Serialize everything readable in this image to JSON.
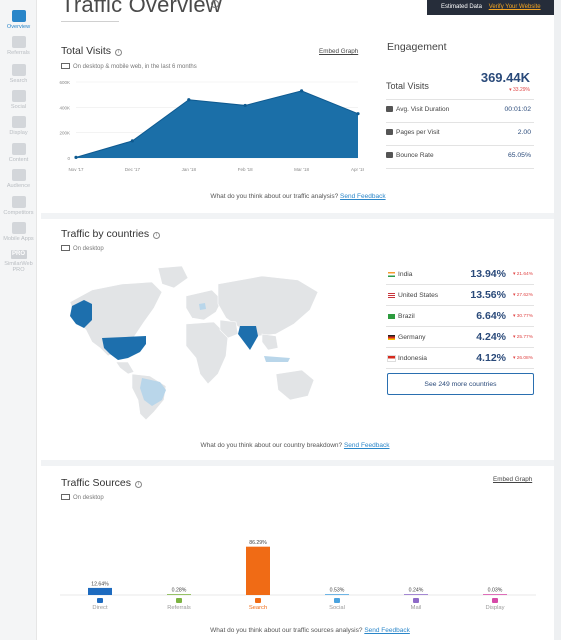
{
  "sidebar": {
    "items": [
      {
        "label": "Overview",
        "active": true
      },
      {
        "label": "Referrals"
      },
      {
        "label": "Search"
      },
      {
        "label": "Social"
      },
      {
        "label": "Display"
      },
      {
        "label": "Content"
      },
      {
        "label": "Audience"
      },
      {
        "label": "Competitors"
      },
      {
        "label": "Mobile Apps"
      }
    ],
    "pro_badge": "PRO",
    "pro_label_1": "SimilarWeb",
    "pro_label_2": "PRO"
  },
  "header": {
    "title": "Traffic Overview",
    "estimated_label": "Estimated Data",
    "verify_link": "Verify Your Website"
  },
  "total_visits": {
    "title": "Total Visits",
    "note": "On desktop & mobile web, in the last 6 months",
    "embed_link": "Embed Graph",
    "chart_data": {
      "type": "area",
      "x": [
        "Nov '17",
        "Dec '17",
        "Jan '18",
        "Feb '18",
        "Mar '18",
        "Apr '18"
      ],
      "values": [
        5,
        135,
        460,
        415,
        530,
        350
      ],
      "yticks": [
        "600K",
        "400K",
        "200K",
        "0"
      ],
      "ylim": [
        0,
        600
      ],
      "grid": true,
      "color": "#1b6fa8"
    },
    "feedback_text": "What do you think about our traffic analysis?",
    "feedback_link": "Send Feedback"
  },
  "engagement": {
    "title": "Engagement",
    "total_visits_label": "Total Visits",
    "total_visits_value": "369.44K",
    "total_visits_change": "33.29%",
    "rows": [
      {
        "label": "Avg. Visit Duration",
        "value": "00:01:02"
      },
      {
        "label": "Pages per Visit",
        "value": "2.00"
      },
      {
        "label": "Bounce Rate",
        "value": "65.05%"
      }
    ]
  },
  "countries": {
    "title": "Traffic by countries",
    "note": "On desktop",
    "rows": [
      {
        "name": "India",
        "pct": "13.94%",
        "change": "21.64%"
      },
      {
        "name": "United States",
        "pct": "13.56%",
        "change": "27.62%"
      },
      {
        "name": "Brazil",
        "pct": "6.64%",
        "change": "30.77%"
      },
      {
        "name": "Germany",
        "pct": "4.24%",
        "change": "25.77%"
      },
      {
        "name": "Indonesia",
        "pct": "4.12%",
        "change": "26.08%"
      }
    ],
    "more_button": "See 249 more countries",
    "feedback_text": "What do you think about our country breakdown?",
    "feedback_link": "Send Feedback"
  },
  "sources": {
    "title": "Traffic Sources",
    "note": "On desktop",
    "embed_link": "Embed Graph",
    "chart_data": {
      "type": "bar",
      "categories": [
        "Direct",
        "Referrals",
        "Search",
        "Social",
        "Mail",
        "Display"
      ],
      "values": [
        12.64,
        0.28,
        86.29,
        0.53,
        0.24,
        0.03
      ],
      "labels": [
        "12.64%",
        "0.28%",
        "86.29%",
        "0.53%",
        "0.24%",
        "0.03%"
      ],
      "colors": [
        "#1e6bbf",
        "#7cb342",
        "#f06b15",
        "#4aa3df",
        "#8e6ac8",
        "#d64aa8"
      ]
    },
    "feedback_text": "What do you think about our traffic sources analysis?",
    "feedback_link": "Send Feedback"
  }
}
